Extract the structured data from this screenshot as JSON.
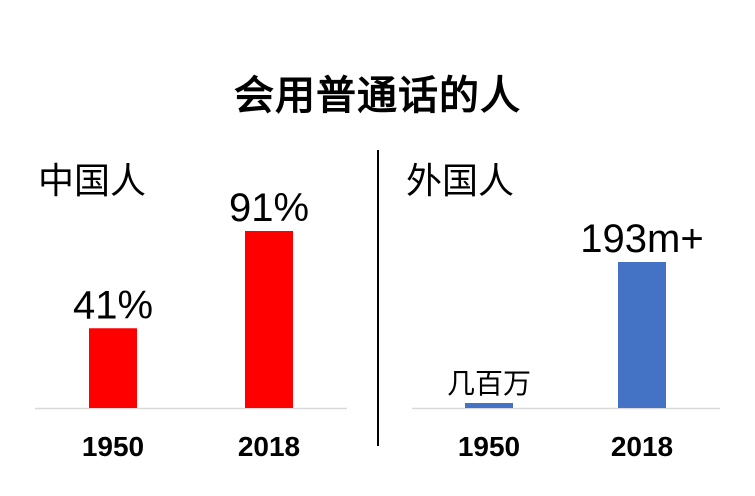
{
  "title": "会用普通话的人",
  "chart_data": [
    {
      "type": "bar",
      "title": "中国人",
      "categories": [
        "1950",
        "2018"
      ],
      "values": [
        41,
        91
      ],
      "value_labels": [
        "41%",
        "91%"
      ],
      "unit": "%",
      "color": "#ff0000",
      "grid": false,
      "legend": "none"
    },
    {
      "type": "bar",
      "title": "外国人",
      "categories": [
        "1950",
        "2018"
      ],
      "values": [
        3,
        193
      ],
      "value_labels": [
        "几百万",
        "193m+"
      ],
      "color": "#4472c4",
      "grid": false,
      "legend": "none"
    }
  ]
}
